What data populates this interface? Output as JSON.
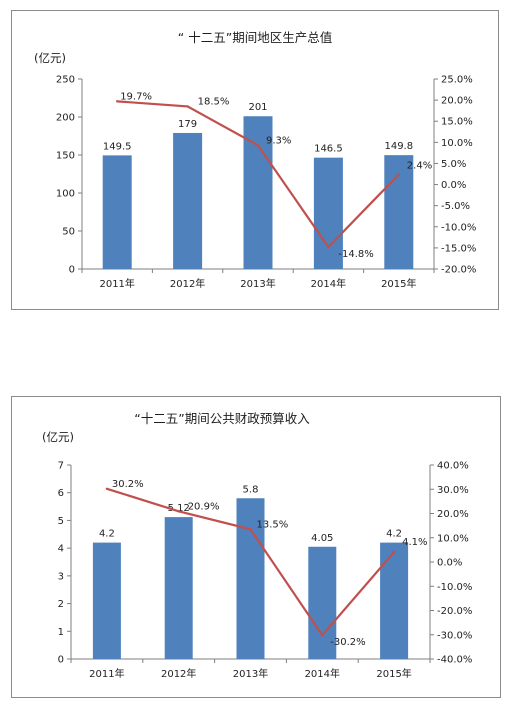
{
  "chart_data": [
    {
      "type": "bar",
      "title": "“ 十二五”期间地区生产总值",
      "ylabel": "(亿元)",
      "categories": [
        "2011年",
        "2012年",
        "2013年",
        "2014年",
        "2015年"
      ],
      "series": [
        {
          "type": "bar",
          "values": [
            149.5,
            179,
            201,
            146.5,
            149.8
          ],
          "labels": [
            "149.5",
            "179",
            "201",
            "146.5",
            "149.8"
          ]
        },
        {
          "type": "line",
          "axis": "right",
          "values": [
            19.7,
            18.5,
            9.3,
            -14.8,
            2.4
          ],
          "labels": [
            "19.7%",
            "18.5%",
            "9.3%",
            "-14.8%",
            "2.4%"
          ]
        }
      ],
      "ylim": [
        0,
        250
      ],
      "yticks": [
        0,
        50,
        100,
        150,
        200,
        250
      ],
      "ytick_labels": [
        "0",
        "50",
        "100",
        "150",
        "200",
        "250"
      ],
      "y2lim": [
        -20,
        25
      ],
      "y2ticks": [
        -20,
        -15,
        -10,
        -5,
        0,
        5,
        10,
        15,
        20,
        25
      ],
      "y2tick_labels": [
        "-20.0%",
        "-15.0%",
        "-10.0%",
        "-5.0%",
        "0.0%",
        "5.0%",
        "10.0%",
        "15.0%",
        "20.0%",
        "25.0%"
      ],
      "grid": false,
      "bar_color": "#4f81bd",
      "line_color": "#c0504d"
    },
    {
      "type": "bar",
      "title": "“十二五”期间公共财政预算收入",
      "ylabel": "(亿元)",
      "categories": [
        "2011年",
        "2012年",
        "2013年",
        "2014年",
        "2015年"
      ],
      "series": [
        {
          "type": "bar",
          "values": [
            4.2,
            5.12,
            5.8,
            4.05,
            4.2
          ],
          "labels": [
            "4.2",
            "5.12",
            "5.8",
            "4.05",
            "4.2"
          ]
        },
        {
          "type": "line",
          "axis": "right",
          "values": [
            30.2,
            20.9,
            13.5,
            -30.2,
            4.1
          ],
          "labels": [
            "30.2%",
            "20.9%",
            "13.5%",
            "-30.2%",
            "4.1%"
          ]
        }
      ],
      "ylim": [
        0,
        7
      ],
      "yticks": [
        0,
        1,
        2,
        3,
        4,
        5,
        6,
        7
      ],
      "ytick_labels": [
        "0",
        "1",
        "2",
        "3",
        "4",
        "5",
        "6",
        "7"
      ],
      "y2lim": [
        -40,
        40
      ],
      "y2ticks": [
        -40,
        -30,
        -20,
        -10,
        0,
        10,
        20,
        30,
        40
      ],
      "y2tick_labels": [
        "-40.0%",
        "-30.0%",
        "-20.0%",
        "-10.0%",
        "0.0%",
        "10.0%",
        "20.0%",
        "30.0%",
        "40.0%"
      ],
      "grid": false,
      "bar_color": "#4f81bd",
      "line_color": "#c0504d"
    }
  ]
}
